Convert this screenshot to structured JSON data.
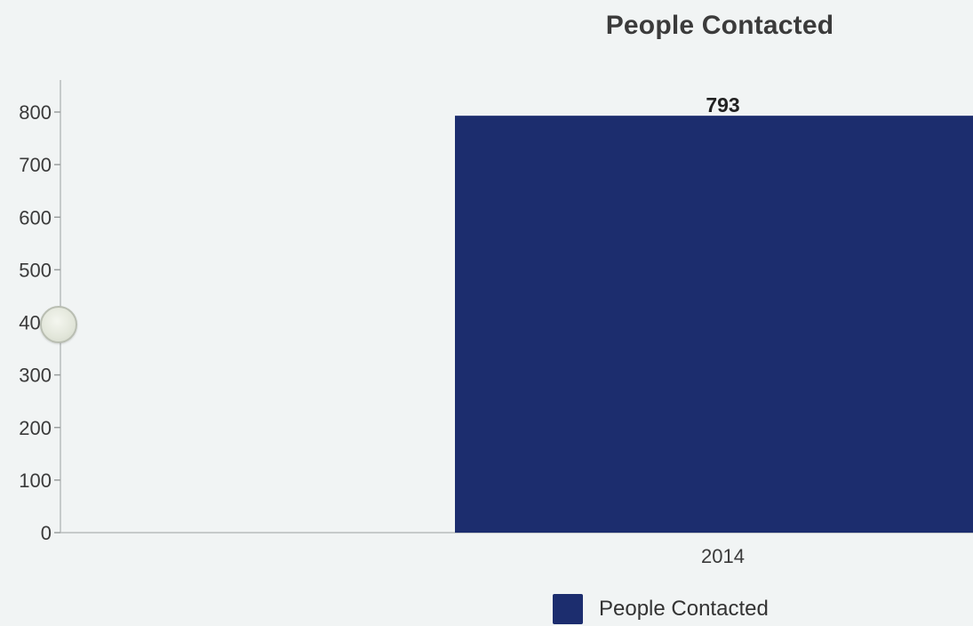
{
  "chart_data": {
    "type": "bar",
    "title": "People Contacted",
    "categories": [
      "2014"
    ],
    "series": [
      {
        "name": "People Contacted",
        "values": [
          793
        ],
        "color": "#1c2d6e"
      }
    ],
    "data_labels": [
      "793"
    ],
    "xlabel": "",
    "ylabel": "",
    "ylim": [
      0,
      800
    ],
    "yticks": [
      0,
      100,
      200,
      300,
      400,
      500,
      600,
      700,
      800
    ],
    "ytick_labels": [
      "0",
      "100",
      "200",
      "300",
      "400",
      "500",
      "600",
      "700",
      "800"
    ],
    "grid": false,
    "legend_position": "bottom-center"
  }
}
